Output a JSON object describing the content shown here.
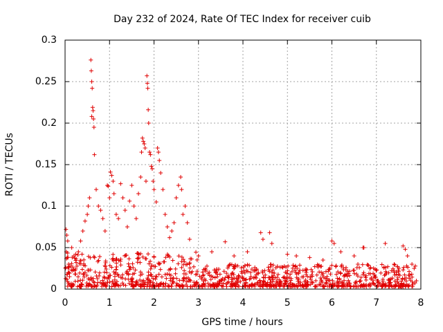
{
  "chart_data": {
    "type": "scatter",
    "title": "Day 232 of 2024, Rate Of TEC Index for receiver cuib",
    "xlabel": "GPS time / hours",
    "ylabel": "ROTI / TECUs",
    "xlim": [
      0,
      8
    ],
    "ylim": [
      0,
      0.3
    ],
    "x_ticks": [
      0,
      1,
      2,
      3,
      4,
      5,
      6,
      7,
      8
    ],
    "x_tick_labels": [
      "0",
      "1",
      "2",
      "3",
      "4",
      "5",
      "6",
      "7",
      "8"
    ],
    "y_ticks": [
      0,
      0.05,
      0.1,
      0.15,
      0.2,
      0.25,
      0.3
    ],
    "y_tick_labels": [
      "0",
      "0.05",
      "0.1",
      "0.15",
      "0.2",
      "0.25",
      "0.3"
    ],
    "grid": true,
    "marker": "plus",
    "color": "#e00000",
    "series": [
      {
        "name": "ROTI",
        "points": [
          [
            0.02,
            0.072
          ],
          [
            0.04,
            0.065
          ],
          [
            0.06,
            0.058
          ],
          [
            0.03,
            0.045
          ],
          [
            0.05,
            0.038
          ],
          [
            0.08,
            0.03
          ],
          [
            0.01,
            0.025
          ],
          [
            0.07,
            0.02
          ],
          [
            0.1,
            0.015
          ],
          [
            0.04,
            0.012
          ],
          [
            0.15,
            0.05
          ],
          [
            0.2,
            0.04
          ],
          [
            0.25,
            0.032
          ],
          [
            0.3,
            0.045
          ],
          [
            0.35,
            0.058
          ],
          [
            0.4,
            0.07
          ],
          [
            0.45,
            0.082
          ],
          [
            0.5,
            0.09
          ],
          [
            0.52,
            0.1
          ],
          [
            0.55,
            0.11
          ],
          [
            0.58,
            0.276
          ],
          [
            0.59,
            0.263
          ],
          [
            0.6,
            0.25
          ],
          [
            0.61,
            0.242
          ],
          [
            0.62,
            0.219
          ],
          [
            0.63,
            0.215
          ],
          [
            0.6,
            0.208
          ],
          [
            0.64,
            0.205
          ],
          [
            0.65,
            0.195
          ],
          [
            0.66,
            0.162
          ],
          [
            0.7,
            0.12
          ],
          [
            0.75,
            0.1
          ],
          [
            0.8,
            0.095
          ],
          [
            0.85,
            0.085
          ],
          [
            0.9,
            0.07
          ],
          [
            0.95,
            0.125
          ],
          [
            0.97,
            0.124
          ],
          [
            1.0,
            0.11
          ],
          [
            1.02,
            0.141
          ],
          [
            1.05,
            0.137
          ],
          [
            1.08,
            0.13
          ],
          [
            1.1,
            0.115
          ],
          [
            1.15,
            0.09
          ],
          [
            1.2,
            0.085
          ],
          [
            1.25,
            0.127
          ],
          [
            1.3,
            0.11
          ],
          [
            1.35,
            0.095
          ],
          [
            1.4,
            0.075
          ],
          [
            1.45,
            0.106
          ],
          [
            1.5,
            0.125
          ],
          [
            1.55,
            0.1
          ],
          [
            1.6,
            0.085
          ],
          [
            1.65,
            0.115
          ],
          [
            1.7,
            0.135
          ],
          [
            1.72,
            0.165
          ],
          [
            1.74,
            0.182
          ],
          [
            1.76,
            0.178
          ],
          [
            1.78,
            0.175
          ],
          [
            1.8,
            0.17
          ],
          [
            1.82,
            0.13
          ],
          [
            1.84,
            0.257
          ],
          [
            1.85,
            0.248
          ],
          [
            1.86,
            0.242
          ],
          [
            1.87,
            0.216
          ],
          [
            1.88,
            0.2
          ],
          [
            1.9,
            0.165
          ],
          [
            1.92,
            0.162
          ],
          [
            1.94,
            0.148
          ],
          [
            1.96,
            0.145
          ],
          [
            1.98,
            0.13
          ],
          [
            2.0,
            0.12
          ],
          [
            2.05,
            0.105
          ],
          [
            2.08,
            0.17
          ],
          [
            2.1,
            0.165
          ],
          [
            2.12,
            0.155
          ],
          [
            2.15,
            0.14
          ],
          [
            2.2,
            0.12
          ],
          [
            2.25,
            0.09
          ],
          [
            2.3,
            0.075
          ],
          [
            2.35,
            0.062
          ],
          [
            2.4,
            0.07
          ],
          [
            2.45,
            0.08
          ],
          [
            2.5,
            0.11
          ],
          [
            2.55,
            0.125
          ],
          [
            2.6,
            0.135
          ],
          [
            2.62,
            0.12
          ],
          [
            2.65,
            0.09
          ],
          [
            2.7,
            0.1
          ],
          [
            2.75,
            0.08
          ],
          [
            2.8,
            0.06
          ],
          [
            3.0,
            0.04
          ],
          [
            3.3,
            0.045
          ],
          [
            3.6,
            0.057
          ],
          [
            3.8,
            0.04
          ],
          [
            4.1,
            0.045
          ],
          [
            4.4,
            0.068
          ],
          [
            4.45,
            0.06
          ],
          [
            4.6,
            0.068
          ],
          [
            4.65,
            0.055
          ],
          [
            5.0,
            0.042
          ],
          [
            5.2,
            0.04
          ],
          [
            5.5,
            0.038
          ],
          [
            5.8,
            0.035
          ],
          [
            6.0,
            0.058
          ],
          [
            6.05,
            0.055
          ],
          [
            6.2,
            0.045
          ],
          [
            6.5,
            0.04
          ],
          [
            6.7,
            0.05
          ],
          [
            6.72,
            0.05
          ],
          [
            7.2,
            0.055
          ],
          [
            7.4,
            0.03
          ],
          [
            7.6,
            0.052
          ],
          [
            7.65,
            0.048
          ],
          [
            7.7,
            0.04
          ],
          [
            7.8,
            0.03
          ],
          [
            7.85,
            0.025
          ],
          [
            7.9,
            0.01
          ]
        ]
      }
    ],
    "dense_band": {
      "note": "continuous cloud of points near the baseline",
      "segments": [
        {
          "x": [
            0.0,
            3.0
          ],
          "y_min": 0.003,
          "y_max": 0.045
        },
        {
          "x": [
            3.0,
            7.9
          ],
          "y_min": 0.003,
          "y_max": 0.03
        }
      ]
    }
  }
}
